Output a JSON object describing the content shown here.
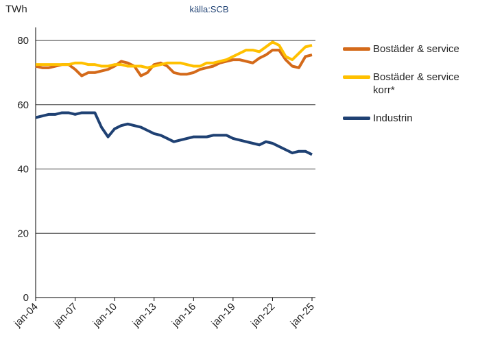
{
  "chart_data": {
    "type": "line",
    "subtitle": "källa:SCB",
    "y_label": "TWh",
    "categories": [
      "jan-04",
      null,
      null,
      null,
      null,
      null,
      "jan-07",
      null,
      null,
      null,
      null,
      null,
      "jan-10",
      null,
      null,
      null,
      null,
      null,
      "jan-13",
      null,
      null,
      null,
      null,
      null,
      "jan-16",
      null,
      null,
      null,
      null,
      null,
      "jan-19",
      null,
      null,
      null,
      null,
      null,
      "jan-22",
      null,
      null,
      null,
      null,
      null,
      "jan-25"
    ],
    "series": [
      {
        "name": "Bostäder & service",
        "color": "#d46a1a",
        "values": [
          72,
          71.5,
          71.5,
          72,
          72.5,
          72.5,
          71,
          69,
          70,
          70,
          70.5,
          71,
          72,
          73.5,
          73,
          72,
          69,
          70,
          72.5,
          73,
          72,
          70,
          69.5,
          69.5,
          70,
          71,
          71.5,
          72,
          73,
          73.5,
          74,
          74,
          73.5,
          73,
          74.5,
          75.5,
          77,
          77,
          74,
          72,
          71.5,
          75,
          75.5
        ]
      },
      {
        "name": "Bostäder & service korr*",
        "color": "#ffc000",
        "values": [
          72.5,
          72.5,
          72.5,
          72.5,
          72.5,
          72.5,
          73,
          73,
          72.5,
          72.5,
          72,
          72,
          72.5,
          72.5,
          72,
          72,
          72,
          71.5,
          72,
          72.5,
          73,
          73,
          73,
          72.5,
          72,
          72,
          73,
          73,
          73.5,
          74,
          75,
          76,
          77,
          77,
          76.5,
          78,
          79.5,
          78.5,
          75,
          74,
          76,
          78,
          78.5
        ]
      },
      {
        "name": "Industrin",
        "color": "#1f4173",
        "values": [
          56,
          56.5,
          57,
          57,
          57.5,
          57.5,
          57,
          57.5,
          57.5,
          57.5,
          53,
          50,
          52.5,
          53.5,
          54,
          53.5,
          53,
          52,
          51,
          50.5,
          49.5,
          48.5,
          49,
          49.5,
          50,
          50,
          50,
          50.5,
          50.5,
          50.5,
          49.5,
          49,
          48.5,
          48,
          47.5,
          48.5,
          48,
          47,
          46,
          45,
          45.5,
          45.5,
          44.5
        ]
      }
    ],
    "ylim": [
      0,
      80
    ],
    "yticks": [
      0,
      20,
      40,
      60,
      80
    ],
    "grid": true
  }
}
